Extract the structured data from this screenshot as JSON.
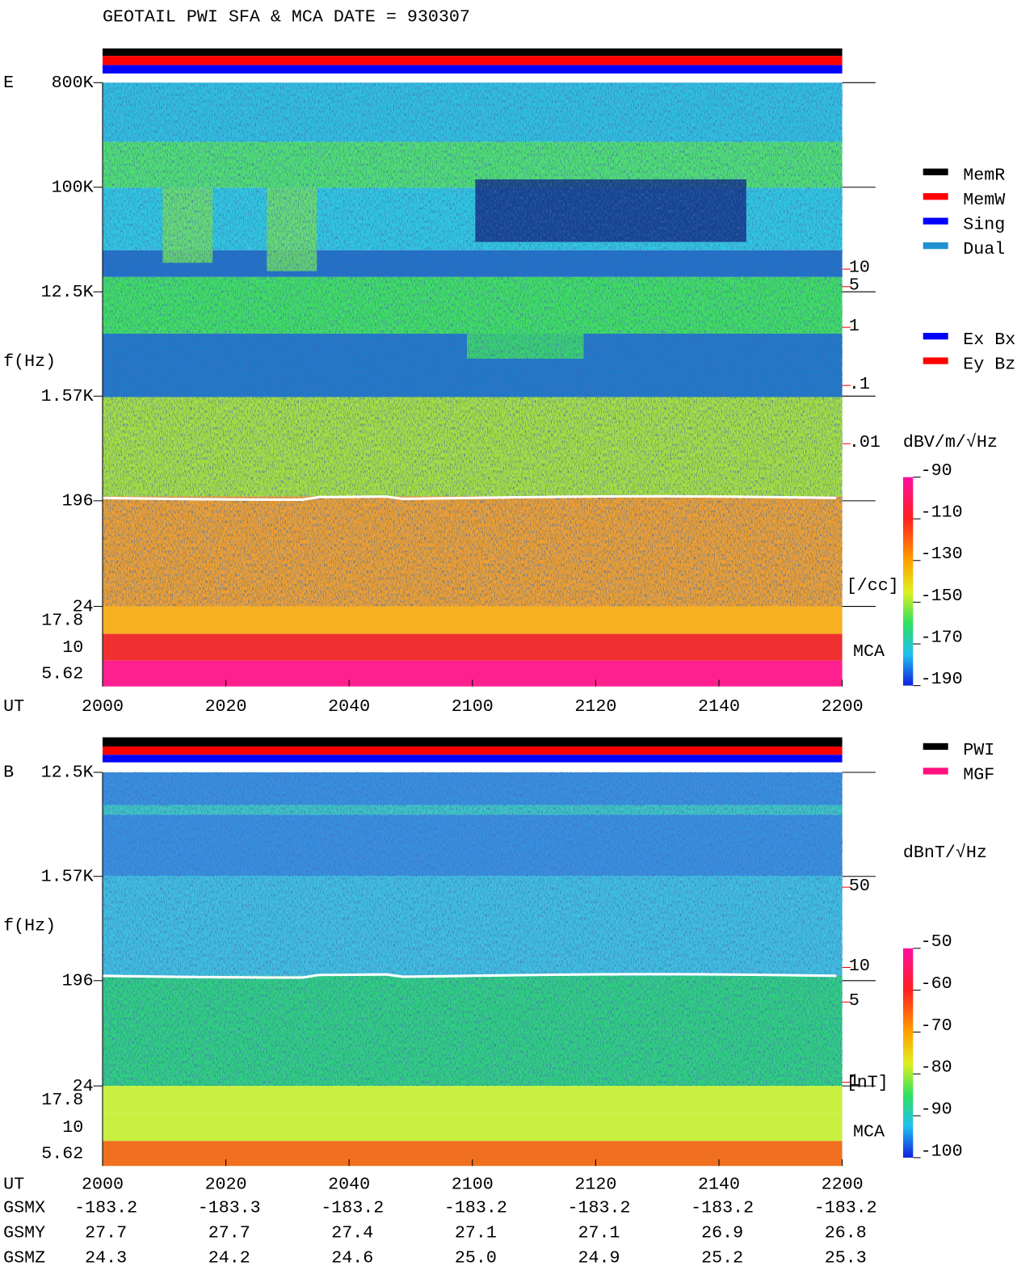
{
  "title": "GEOTAIL  PWI SFA & MCA   DATE = 930307",
  "chart_data": [
    {
      "type": "spectrogram",
      "panel_label": "E",
      "y_label": "f(Hz)",
      "x_label": "UT",
      "yscale": "log",
      "ylim": [
        24,
        800000
      ],
      "yticks": [
        {
          "value": 800000,
          "label": "800K"
        },
        {
          "value": 100000,
          "label": "100K"
        },
        {
          "value": 12500,
          "label": "12.5K"
        },
        {
          "value": 1570,
          "label": "1.57K"
        },
        196,
        24
      ],
      "mca_label": "MCA",
      "mca_ticks": [
        17.8,
        10,
        5.62
      ],
      "xticks": [
        "2000",
        "2020",
        "2040",
        "2100",
        "2120",
        "2140",
        "2200"
      ],
      "y2_label": "[/cc]",
      "y2scale": "log",
      "y2lim": [
        1.6e-05,
        16000
      ],
      "y2ticks": [
        10,
        5,
        1,
        {
          "value": 0.1,
          "label": ".1"
        },
        {
          "value": 0.01,
          "label": ".01"
        }
      ],
      "legend": [
        {
          "name": "MemR",
          "color": "#000000"
        },
        {
          "name": "MemW",
          "color": "#ff0000"
        },
        {
          "name": "Sing",
          "color": "#0000ff"
        },
        {
          "name": "Dual",
          "color": "#1f8fd0"
        }
      ],
      "component_legend": [
        {
          "name": "Ex Bx",
          "color": "#0000ff"
        },
        {
          "name": "Ey Bz",
          "color": "#ff0000"
        }
      ],
      "colorbar": {
        "label": "dBV/m/√Hz",
        "lim": [
          -190,
          -90
        ],
        "ticks": [
          -90,
          -110,
          -130,
          -150,
          -170,
          -190
        ]
      }
    },
    {
      "type": "spectrogram",
      "panel_label": "B",
      "y_label": "f(Hz)",
      "x_label": "UT",
      "yscale": "log",
      "ylim": [
        24,
        12500
      ],
      "yticks": [
        {
          "value": 12500,
          "label": "12.5K"
        },
        {
          "value": 1570,
          "label": "1.57K"
        },
        196,
        24
      ],
      "mca_label": "MCA",
      "mca_ticks": [
        17.8,
        10,
        5.62
      ],
      "xticks": [
        "2000",
        "2020",
        "2040",
        "2100",
        "2120",
        "2140",
        "2200"
      ],
      "y2_label": "[nT]",
      "y2scale": "log",
      "y2lim": [
        0.93,
        500
      ],
      "y2ticks": [
        50,
        10,
        5,
        1
      ],
      "legend": [
        {
          "name": "PWI",
          "color": "#000000"
        },
        {
          "name": "MGF",
          "color": "#ff1080"
        }
      ],
      "colorbar": {
        "label": "dBnT/√Hz",
        "lim": [
          -100,
          -50
        ],
        "ticks": [
          -50,
          -60,
          -70,
          -80,
          -90,
          -100
        ]
      }
    }
  ],
  "orbit": {
    "rows": [
      {
        "name": "GSMX",
        "values": [
          -183.2,
          -183.3,
          -183.2,
          -183.2,
          -183.2,
          -183.2,
          -183.2
        ]
      },
      {
        "name": "GSMY",
        "values": [
          27.7,
          27.7,
          27.4,
          27.1,
          27.1,
          26.9,
          26.8
        ]
      },
      {
        "name": "GSMZ",
        "values": [
          24.3,
          24.2,
          24.6,
          {
            "value": 25,
            "label": "25.0"
          },
          24.9,
          25.2,
          25.3
        ]
      }
    ]
  }
}
